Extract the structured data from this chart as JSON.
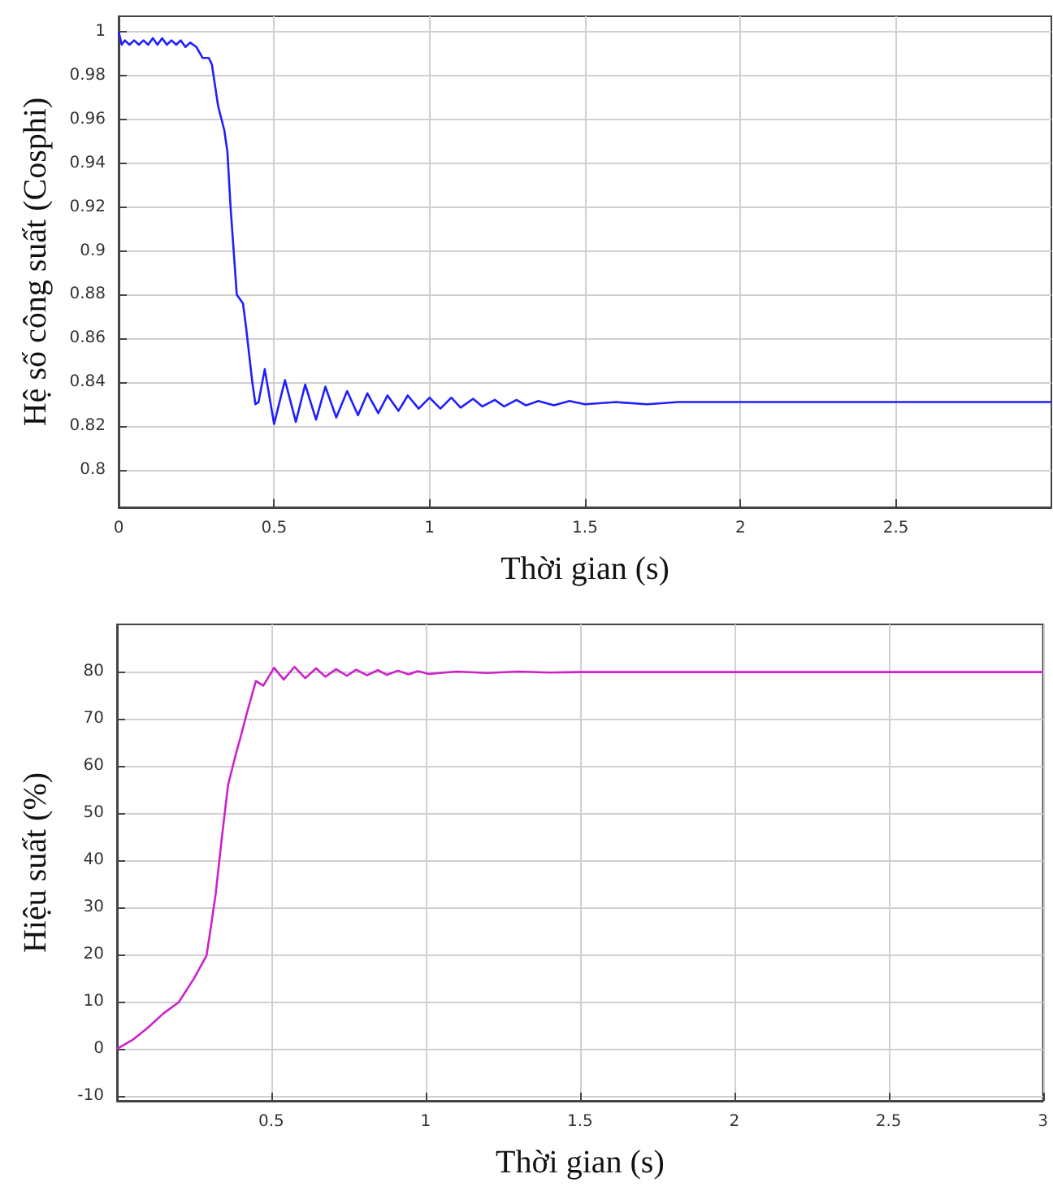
{
  "chart_data": [
    {
      "type": "line",
      "xlabel": "Thời gian (s)",
      "ylabel": "Hệ số công suất (Cosphi)",
      "x": [
        0,
        0.01,
        0.02,
        0.035,
        0.05,
        0.065,
        0.08,
        0.095,
        0.11,
        0.125,
        0.14,
        0.155,
        0.17,
        0.185,
        0.2,
        0.215,
        0.23,
        0.25,
        0.27,
        0.29,
        0.3,
        0.32,
        0.34,
        0.35,
        0.36,
        0.37,
        0.38,
        0.39,
        0.4,
        0.41,
        0.43,
        0.44,
        0.45,
        0.47,
        0.5,
        0.535,
        0.57,
        0.6,
        0.635,
        0.665,
        0.7,
        0.735,
        0.77,
        0.8,
        0.835,
        0.865,
        0.9,
        0.93,
        0.965,
        1.0,
        1.035,
        1.07,
        1.1,
        1.14,
        1.17,
        1.21,
        1.24,
        1.28,
        1.31,
        1.35,
        1.4,
        1.45,
        1.5,
        1.6,
        1.7,
        1.8,
        2.0,
        2.5,
        3.0
      ],
      "series": [
        {
          "color": "#1f1fff",
          "values": [
            1.0,
            0.994,
            0.996,
            0.994,
            0.996,
            0.994,
            0.996,
            0.994,
            0.997,
            0.994,
            0.997,
            0.994,
            0.996,
            0.994,
            0.996,
            0.993,
            0.995,
            0.993,
            0.988,
            0.988,
            0.985,
            0.966,
            0.955,
            0.945,
            0.92,
            0.9,
            0.88,
            0.878,
            0.876,
            0.865,
            0.84,
            0.83,
            0.831,
            0.846,
            0.821,
            0.841,
            0.822,
            0.839,
            0.823,
            0.838,
            0.824,
            0.836,
            0.825,
            0.835,
            0.826,
            0.834,
            0.827,
            0.834,
            0.828,
            0.833,
            0.828,
            0.833,
            0.8285,
            0.8325,
            0.829,
            0.832,
            0.829,
            0.832,
            0.8295,
            0.8315,
            0.8295,
            0.8315,
            0.83,
            0.831,
            0.83,
            0.831,
            0.831,
            0.831,
            0.831
          ]
        }
      ],
      "xlim": [
        0,
        3
      ],
      "xticks": [
        0,
        0.5,
        1,
        1.5,
        2,
        2.5
      ],
      "ylim": [
        0.783,
        1.007
      ],
      "yticks": [
        0.8,
        0.82,
        0.84,
        0.86,
        0.88,
        0.9,
        0.92,
        0.94,
        0.96,
        0.98,
        1
      ],
      "grid": true,
      "marker": "none",
      "line_style": "solid"
    },
    {
      "type": "line",
      "xlabel": "Thời gian (s)",
      "ylabel": "Hiệu suất (%)",
      "x": [
        0,
        0.05,
        0.1,
        0.15,
        0.2,
        0.25,
        0.29,
        0.3,
        0.32,
        0.34,
        0.36,
        0.387,
        0.4,
        0.42,
        0.45,
        0.474,
        0.509,
        0.54,
        0.575,
        0.61,
        0.645,
        0.675,
        0.71,
        0.745,
        0.775,
        0.81,
        0.845,
        0.875,
        0.91,
        0.945,
        0.975,
        1.01,
        1.1,
        1.2,
        1.3,
        1.4,
        1.5,
        2.0,
        2.5,
        3.0
      ],
      "series": [
        {
          "color": "#cc22cc",
          "values": [
            0,
            1.9,
            4.5,
            7.5,
            9.9,
            15,
            19.8,
            24,
            33,
            45,
            56,
            63,
            66,
            71,
            78,
            77,
            80.8,
            78.3,
            81,
            78.6,
            80.7,
            78.9,
            80.5,
            79.1,
            80.4,
            79.2,
            80.3,
            79.3,
            80.2,
            79.4,
            80.1,
            79.5,
            80,
            79.7,
            80,
            79.8,
            79.9,
            79.9,
            79.9,
            79.9
          ]
        }
      ],
      "xlim": [
        0,
        3
      ],
      "xticks": [
        0.5,
        1,
        1.5,
        2,
        2.5,
        3
      ],
      "ylim": [
        -11,
        90
      ],
      "yticks": [
        -10,
        0,
        10,
        20,
        30,
        40,
        50,
        60,
        70,
        80
      ],
      "grid": true,
      "marker": "none",
      "line_style": "solid"
    }
  ]
}
